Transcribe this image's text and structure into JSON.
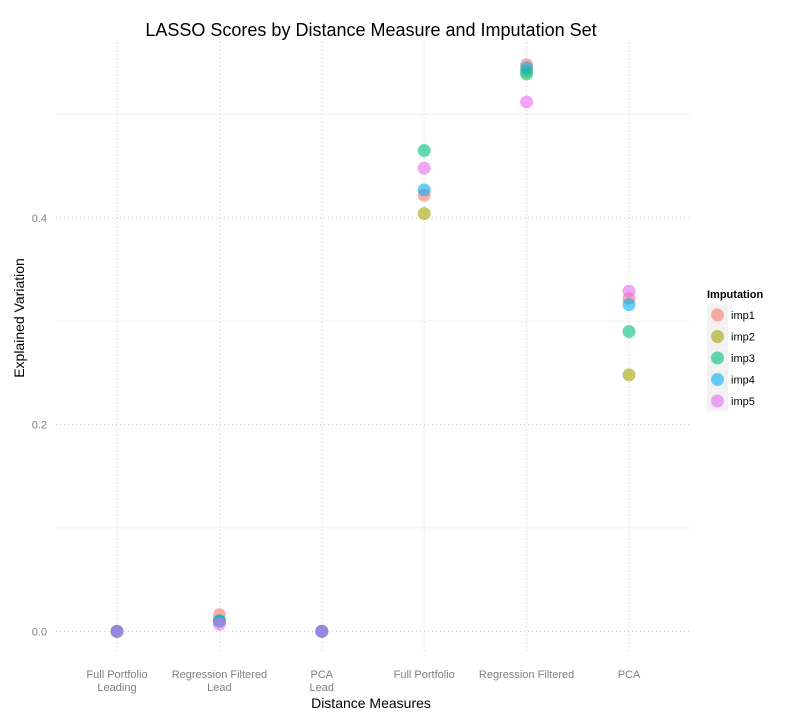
{
  "chart_data": {
    "type": "scatter",
    "title": "LASSO Scores by Distance Measure and Imputation Set",
    "xlabel": "Distance Measures",
    "ylabel": "Explained Variation",
    "categories": [
      [
        "Full Portfolio",
        "Leading"
      ],
      [
        "Regression Filtered",
        "Lead"
      ],
      [
        "PCA",
        "Lead"
      ],
      [
        "Full Portfolio"
      ],
      [
        "Regression Filtered"
      ],
      [
        "PCA"
      ]
    ],
    "ylim": [
      -0.02,
      0.57
    ],
    "yticks": [
      0.0,
      0.2,
      0.4
    ],
    "ytick_labels": [
      "0.0",
      "0.2",
      "0.4"
    ],
    "grid": true,
    "legend": {
      "title": "Imputation",
      "placement": "right"
    },
    "series": [
      {
        "name": "imp1",
        "color": "#F8766D",
        "values": [
          0.0,
          0.016,
          0.0,
          0.422,
          0.548,
          0.322
        ]
      },
      {
        "name": "imp2",
        "color": "#A3A500",
        "values": [
          0.0,
          0.01,
          0.0,
          0.404,
          0.542,
          0.248
        ]
      },
      {
        "name": "imp3",
        "color": "#00BF7D",
        "values": [
          0.0,
          0.01,
          0.0,
          0.465,
          0.539,
          0.29
        ]
      },
      {
        "name": "imp4",
        "color": "#00B0F6",
        "values": [
          0.0,
          0.01,
          0.0,
          0.427,
          0.545,
          0.316
        ]
      },
      {
        "name": "imp5",
        "color": "#E76BF3",
        "values": [
          0.0,
          0.007,
          0.0,
          0.448,
          0.512,
          0.329
        ]
      }
    ]
  }
}
